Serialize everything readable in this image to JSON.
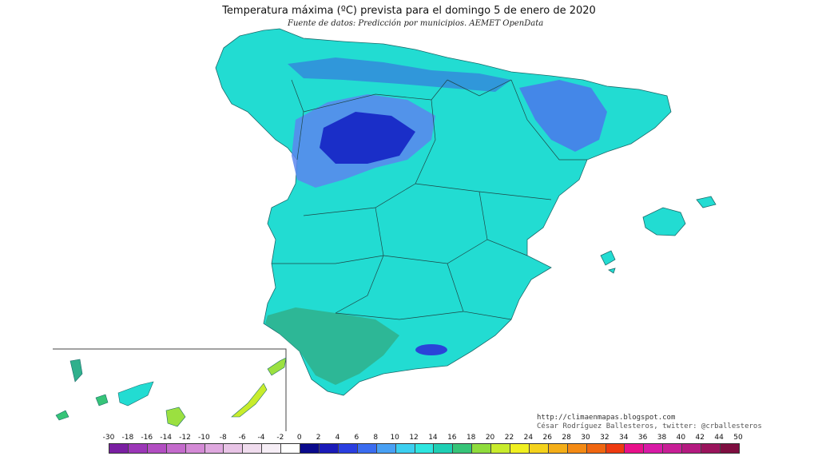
{
  "title": "Temperatura máxima (ºC) prevista para el domingo 5 de enero de 2020",
  "subtitle": "Fuente de datos: Predicción por municipios. AEMET OpenData",
  "credits": {
    "line1": "http://climaenmapas.blogspot.com",
    "line2": "César Rodríguez Ballesteros, twitter: @crballesteros"
  },
  "legend": {
    "labels": [
      "-30",
      "-18",
      "-16",
      "-14",
      "-12",
      "-10",
      "-8",
      "-6",
      "-4",
      "-2",
      "0",
      "2",
      "4",
      "6",
      "8",
      "10",
      "12",
      "14",
      "16",
      "18",
      "20",
      "22",
      "24",
      "26",
      "28",
      "30",
      "32",
      "34",
      "36",
      "38",
      "40",
      "42",
      "44",
      "50"
    ],
    "colors": [
      "#7a1fa2",
      "#9b36b7",
      "#b24ec2",
      "#c46bcc",
      "#d48ad6",
      "#dfa8df",
      "#e8c4e6",
      "#f0dcee",
      "#f6eef6",
      "#ffffff",
      "#0a0a8c",
      "#1a1ab8",
      "#2a3ee0",
      "#3a6cf0",
      "#48a0f4",
      "#3ccff0",
      "#2ee6e0",
      "#1ecfb4",
      "#36c478",
      "#8fdc3c",
      "#c8ec2c",
      "#f0f020",
      "#f4d21c",
      "#f4ae18",
      "#f48a14",
      "#f06610",
      "#ee3a10",
      "#e8108a",
      "#d81aa6",
      "#c81e96",
      "#b41a80",
      "#9a145c",
      "#7e0e40"
    ]
  },
  "map": {
    "region": "Península Ibérica, Baleares y Canarias",
    "dominant_color": "#22dcd2",
    "cold_color": "#1a2ec8",
    "warm_color": "#2fb08c",
    "canarias_color": "#9be040"
  }
}
